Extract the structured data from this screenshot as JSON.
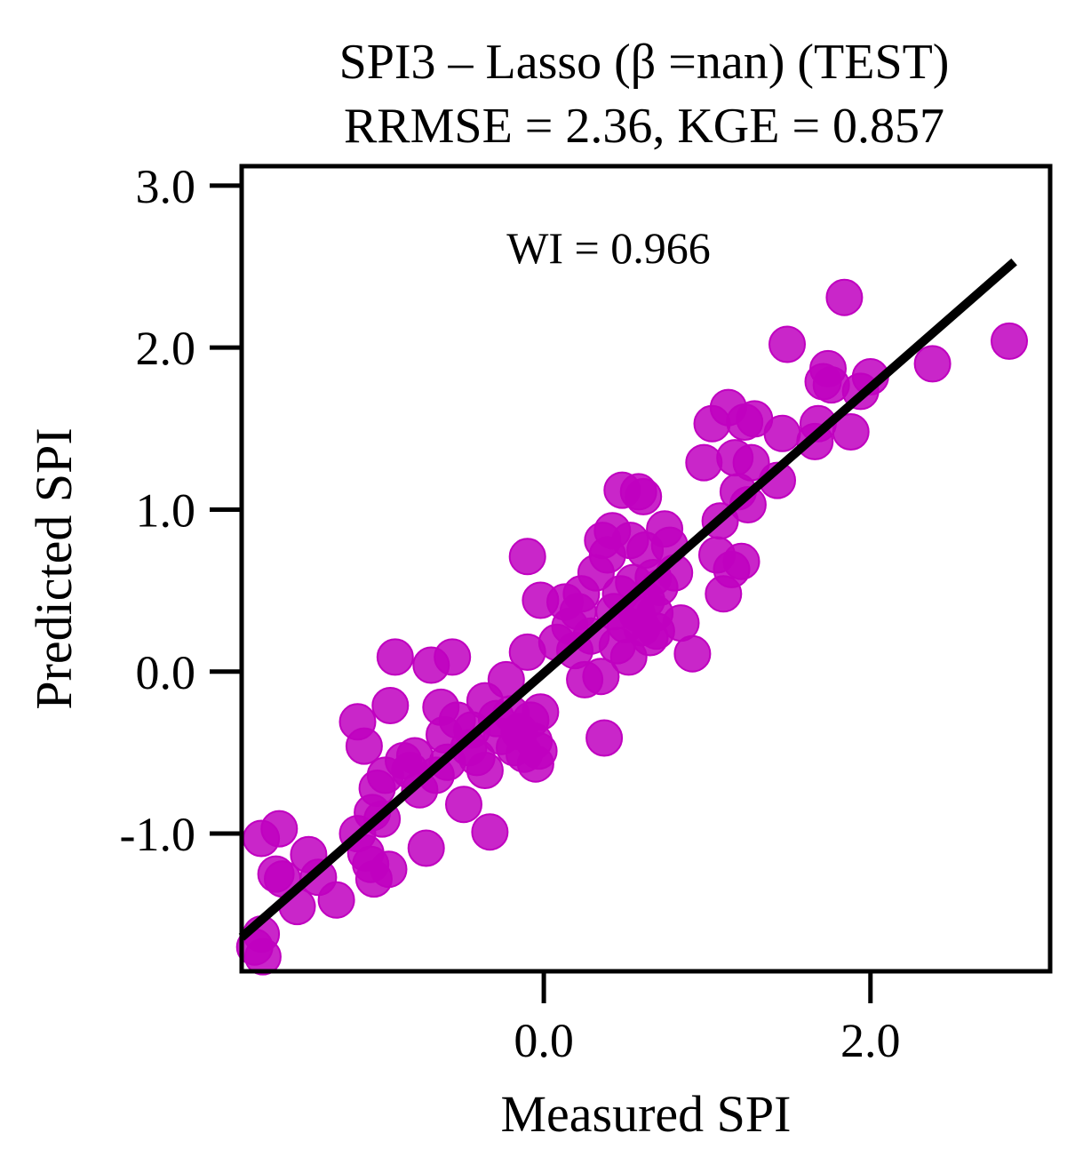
{
  "chart_data": {
    "type": "scatter",
    "title": "SPI3 – Lasso (β =nan) (TEST)",
    "subtitle": "RRMSE = 2.36, KGE = 0.857",
    "annotation": "WI = 0.966",
    "xlabel": "Measured SPI",
    "ylabel": "Predicted SPI",
    "xlim": [
      -1.85,
      3.1
    ],
    "ylim": [
      -1.85,
      3.12
    ],
    "x_ticks": [
      0.0,
      2.0
    ],
    "x_tick_labels": [
      "0.0",
      "2.0"
    ],
    "y_ticks": [
      -1.0,
      0.0,
      1.0,
      2.0,
      3.0
    ],
    "y_tick_labels": [
      "-1.0",
      "0.0",
      "1.0",
      "2.0",
      "3.0"
    ],
    "grid": false,
    "point_color": "#c000c0",
    "line_color": "#000000",
    "fit_line": {
      "x": [
        -1.85,
        2.88
      ],
      "y": [
        -1.64,
        2.53
      ]
    },
    "points": [
      {
        "x": -1.73,
        "y": -1.03
      },
      {
        "x": -1.62,
        "y": -0.97
      },
      {
        "x": -1.73,
        "y": -1.62
      },
      {
        "x": -1.77,
        "y": -1.7
      },
      {
        "x": -1.72,
        "y": -1.76
      },
      {
        "x": -1.64,
        "y": -1.25
      },
      {
        "x": -1.6,
        "y": -1.28
      },
      {
        "x": -1.51,
        "y": -1.45
      },
      {
        "x": -1.44,
        "y": -1.13
      },
      {
        "x": -1.38,
        "y": -1.27
      },
      {
        "x": -1.27,
        "y": -1.41
      },
      {
        "x": -1.14,
        "y": -0.31
      },
      {
        "x": -1.1,
        "y": -0.46
      },
      {
        "x": -1.14,
        "y": -1.0
      },
      {
        "x": -1.09,
        "y": -1.12
      },
      {
        "x": -1.06,
        "y": -1.19
      },
      {
        "x": -1.04,
        "y": -1.28
      },
      {
        "x": -1.05,
        "y": -0.87
      },
      {
        "x": -1.02,
        "y": -0.72
      },
      {
        "x": -0.99,
        "y": -0.91
      },
      {
        "x": -0.97,
        "y": -0.64
      },
      {
        "x": -0.95,
        "y": -1.22
      },
      {
        "x": -0.94,
        "y": -0.21
      },
      {
        "x": -0.91,
        "y": 0.09
      },
      {
        "x": -0.86,
        "y": -0.55
      },
      {
        "x": -0.82,
        "y": -0.61
      },
      {
        "x": -0.79,
        "y": -0.52
      },
      {
        "x": -0.76,
        "y": -0.73
      },
      {
        "x": -0.72,
        "y": -1.09
      },
      {
        "x": -0.69,
        "y": 0.04
      },
      {
        "x": -0.66,
        "y": -0.64
      },
      {
        "x": -0.63,
        "y": -0.22
      },
      {
        "x": -0.61,
        "y": -0.39
      },
      {
        "x": -0.59,
        "y": -0.56
      },
      {
        "x": -0.56,
        "y": 0.09
      },
      {
        "x": -0.53,
        "y": -0.3
      },
      {
        "x": -0.49,
        "y": -0.82
      },
      {
        "x": -0.46,
        "y": -0.47
      },
      {
        "x": -0.44,
        "y": -0.36
      },
      {
        "x": -0.41,
        "y": -0.53
      },
      {
        "x": -0.36,
        "y": -0.61
      },
      {
        "x": -0.36,
        "y": -0.18
      },
      {
        "x": -0.33,
        "y": -0.99
      },
      {
        "x": -0.29,
        "y": -0.29
      },
      {
        "x": -0.26,
        "y": -0.4
      },
      {
        "x": -0.23,
        "y": -0.05
      },
      {
        "x": -0.2,
        "y": -0.26
      },
      {
        "x": -0.18,
        "y": -0.47
      },
      {
        "x": -0.15,
        "y": -0.37
      },
      {
        "x": -0.12,
        "y": -0.51
      },
      {
        "x": -0.1,
        "y": 0.12
      },
      {
        "x": -0.08,
        "y": -0.3
      },
      {
        "x": -0.06,
        "y": -0.43
      },
      {
        "x": -0.05,
        "y": -0.57
      },
      {
        "x": -0.03,
        "y": -0.49
      },
      {
        "x": -0.02,
        "y": -0.25
      },
      {
        "x": -0.1,
        "y": 0.71
      },
      {
        "x": -0.02,
        "y": 0.44
      },
      {
        "x": 0.08,
        "y": 0.18
      },
      {
        "x": 0.13,
        "y": 0.43
      },
      {
        "x": 0.16,
        "y": 0.28
      },
      {
        "x": 0.19,
        "y": 0.13
      },
      {
        "x": 0.21,
        "y": 0.37
      },
      {
        "x": 0.23,
        "y": 0.48
      },
      {
        "x": 0.25,
        "y": -0.05
      },
      {
        "x": 0.29,
        "y": 0.22
      },
      {
        "x": 0.32,
        "y": 0.61
      },
      {
        "x": 0.35,
        "y": -0.03
      },
      {
        "x": 0.36,
        "y": 0.81
      },
      {
        "x": 0.37,
        "y": -0.41
      },
      {
        "x": 0.39,
        "y": 0.72
      },
      {
        "x": 0.42,
        "y": 0.87
      },
      {
        "x": 0.43,
        "y": 0.37
      },
      {
        "x": 0.45,
        "y": 0.16
      },
      {
        "x": 0.47,
        "y": 0.48
      },
      {
        "x": 0.48,
        "y": 1.12
      },
      {
        "x": 0.5,
        "y": 0.29
      },
      {
        "x": 0.52,
        "y": 0.09
      },
      {
        "x": 0.53,
        "y": 0.81
      },
      {
        "x": 0.55,
        "y": 0.55
      },
      {
        "x": 0.57,
        "y": 0.36
      },
      {
        "x": 0.58,
        "y": 1.11
      },
      {
        "x": 0.6,
        "y": 0.27
      },
      {
        "x": 0.61,
        "y": 1.08
      },
      {
        "x": 0.62,
        "y": 0.75
      },
      {
        "x": 0.63,
        "y": 0.44
      },
      {
        "x": 0.65,
        "y": 0.21
      },
      {
        "x": 0.67,
        "y": 0.58
      },
      {
        "x": 0.68,
        "y": 0.36
      },
      {
        "x": 0.69,
        "y": 0.25
      },
      {
        "x": 0.71,
        "y": 0.52
      },
      {
        "x": 0.74,
        "y": 0.88
      },
      {
        "x": 0.77,
        "y": 0.78
      },
      {
        "x": 0.8,
        "y": 0.61
      },
      {
        "x": 0.84,
        "y": 0.3
      },
      {
        "x": 0.91,
        "y": 0.11
      },
      {
        "x": 0.98,
        "y": 1.29
      },
      {
        "x": 1.03,
        "y": 1.53
      },
      {
        "x": 1.06,
        "y": 0.72
      },
      {
        "x": 1.08,
        "y": 0.93
      },
      {
        "x": 1.1,
        "y": 0.48
      },
      {
        "x": 1.13,
        "y": 1.63
      },
      {
        "x": 1.15,
        "y": 0.63
      },
      {
        "x": 1.17,
        "y": 1.32
      },
      {
        "x": 1.19,
        "y": 1.11
      },
      {
        "x": 1.21,
        "y": 0.68
      },
      {
        "x": 1.23,
        "y": 1.54
      },
      {
        "x": 1.25,
        "y": 1.03
      },
      {
        "x": 1.27,
        "y": 1.29
      },
      {
        "x": 1.29,
        "y": 1.56
      },
      {
        "x": 1.43,
        "y": 1.18
      },
      {
        "x": 1.46,
        "y": 1.47
      },
      {
        "x": 1.49,
        "y": 2.02
      },
      {
        "x": 1.66,
        "y": 1.42
      },
      {
        "x": 1.68,
        "y": 1.53
      },
      {
        "x": 1.71,
        "y": 1.79
      },
      {
        "x": 1.74,
        "y": 1.87
      },
      {
        "x": 1.76,
        "y": 1.77
      },
      {
        "x": 1.84,
        "y": 2.31
      },
      {
        "x": 1.88,
        "y": 1.48
      },
      {
        "x": 1.94,
        "y": 1.73
      },
      {
        "x": 2.0,
        "y": 1.82
      },
      {
        "x": 2.38,
        "y": 1.9
      },
      {
        "x": 2.85,
        "y": 2.04
      }
    ]
  }
}
